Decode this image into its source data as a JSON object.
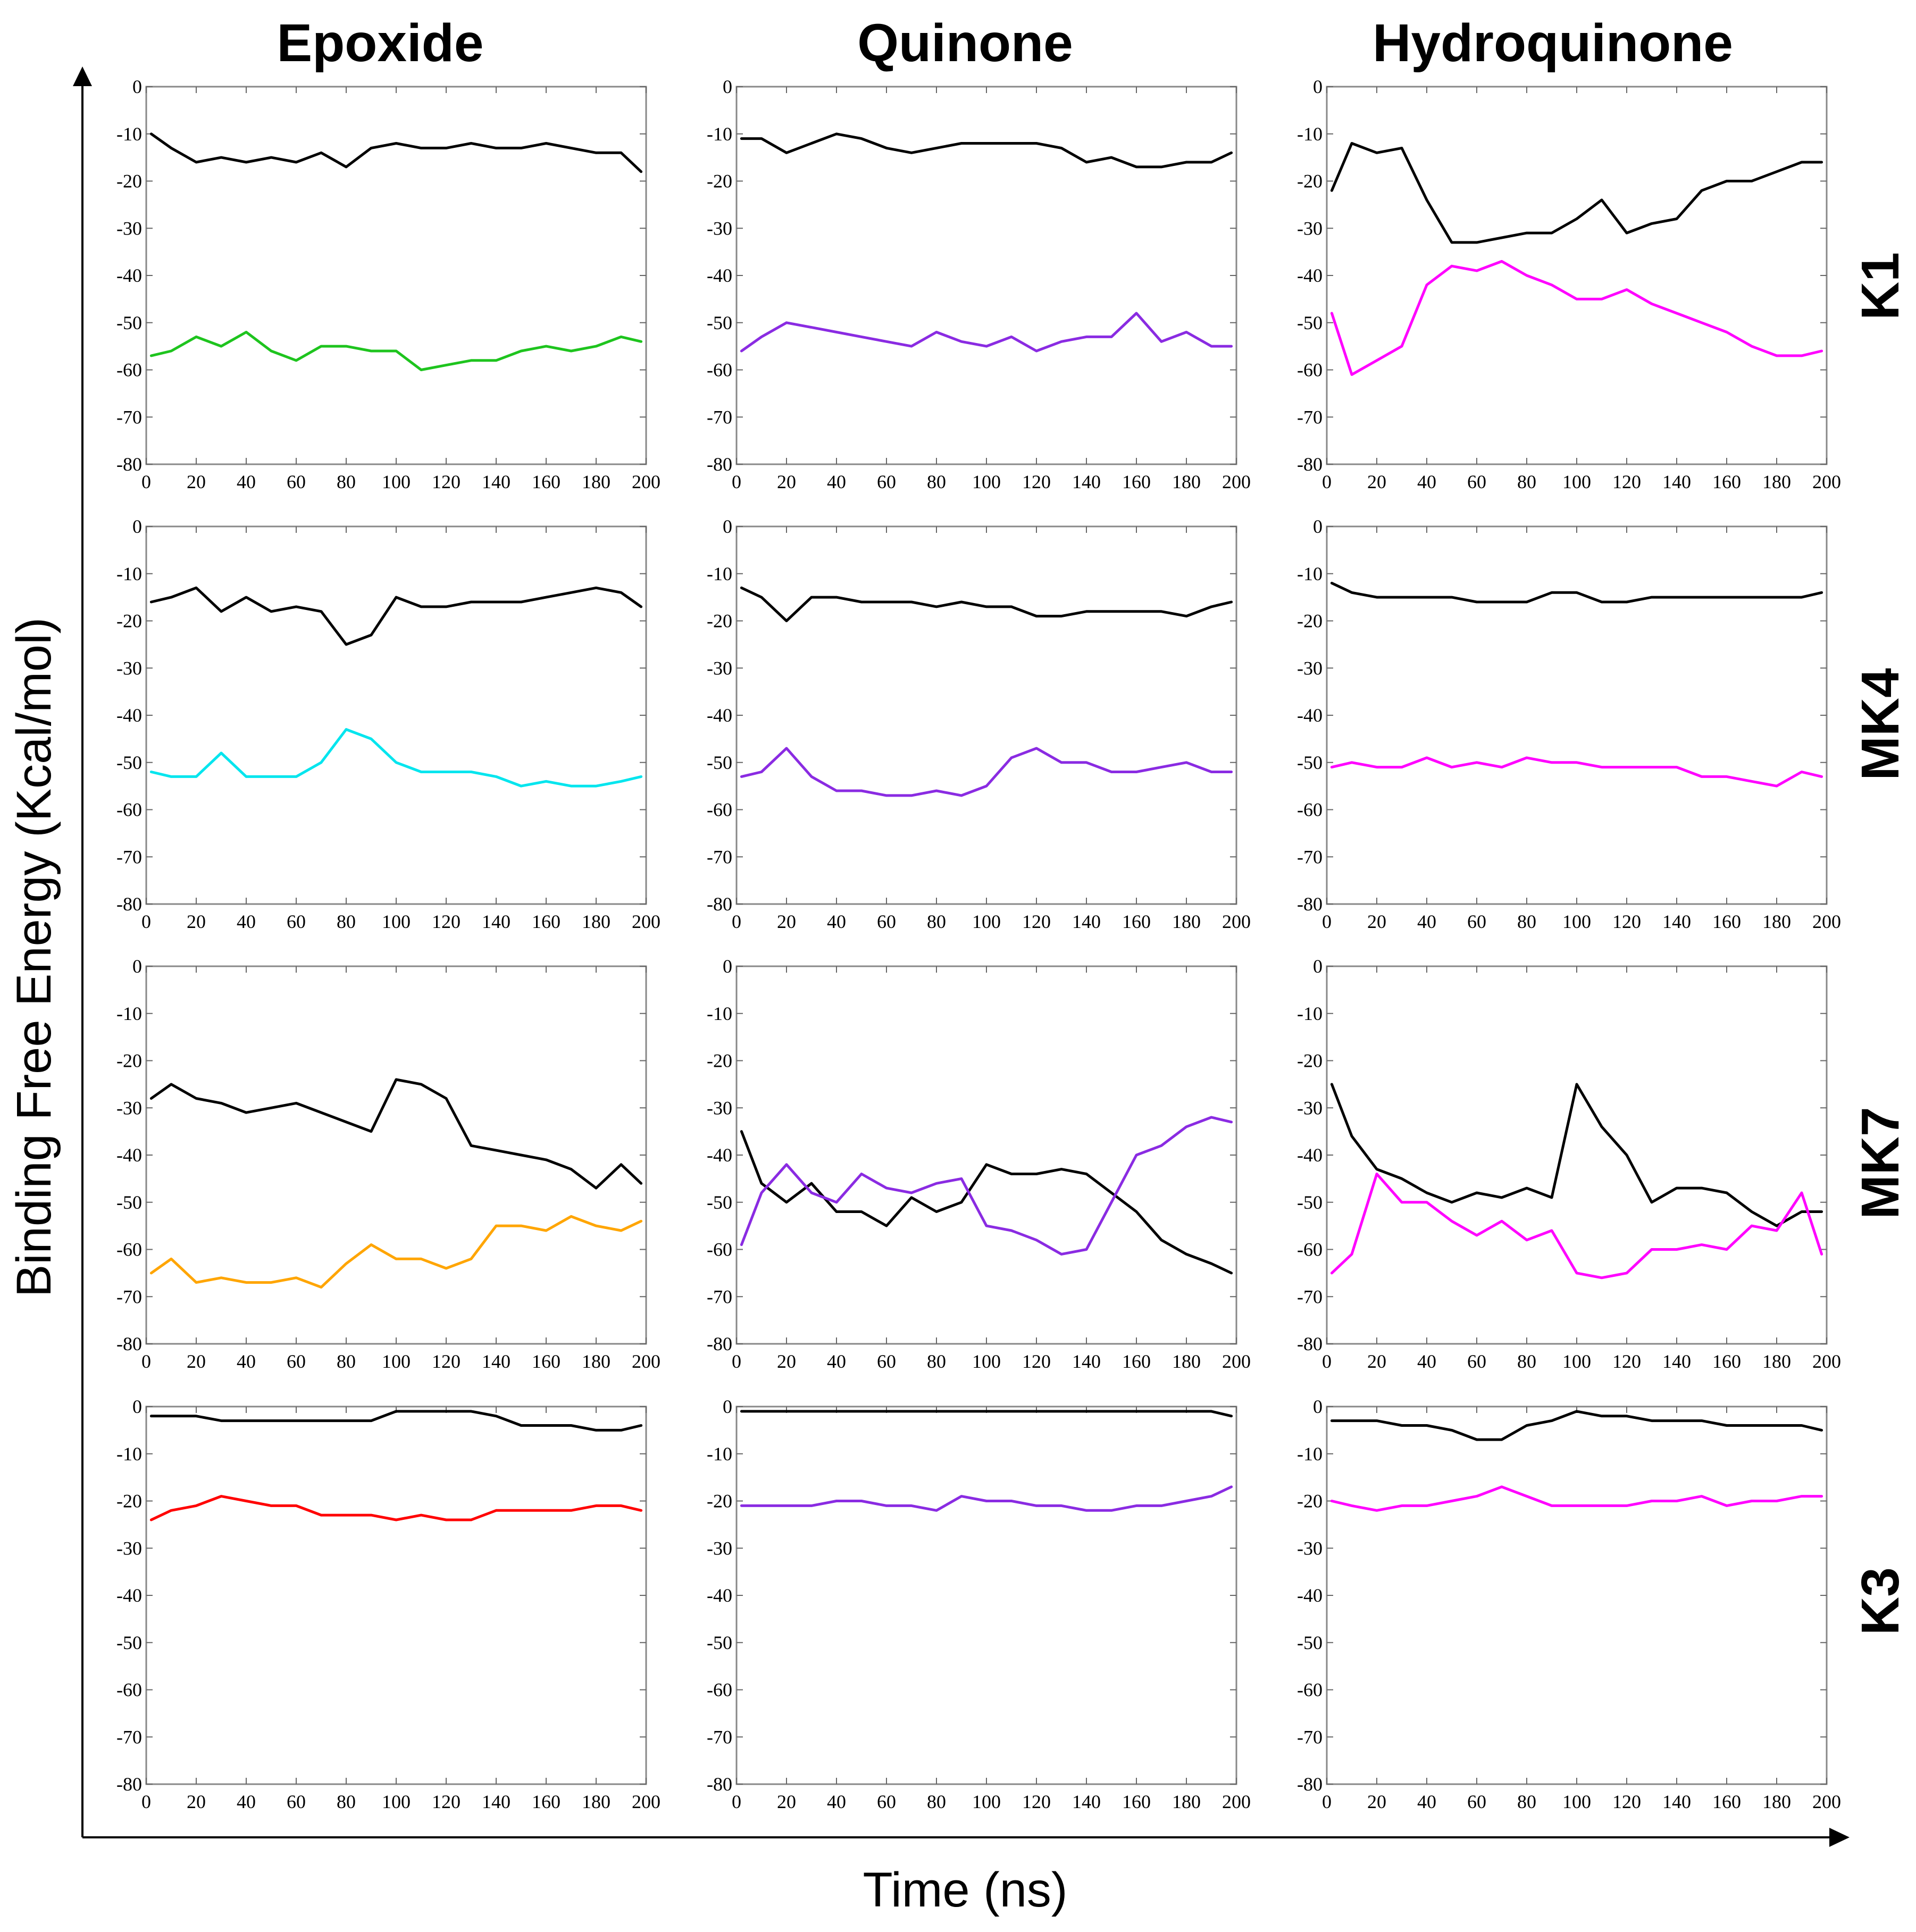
{
  "figure": {
    "column_titles": [
      "Epoxide",
      "Quinone",
      "Hydroquinone"
    ],
    "row_titles": [
      "K1",
      "MK4",
      "MK7",
      "K3"
    ],
    "x_axis_title": "Time (ns)",
    "y_axis_title": "Binding Free Energy (Kcal/mol)"
  },
  "chart_data": {
    "type": "line",
    "layout": "4x3 grid",
    "xlim": [
      0,
      200
    ],
    "ylim": [
      -80,
      0
    ],
    "x_ticks": [
      0,
      20,
      40,
      60,
      80,
      100,
      120,
      140,
      160,
      180,
      200
    ],
    "y_ticks": [
      0,
      -10,
      -20,
      -30,
      -40,
      -50,
      -60,
      -70,
      -80
    ],
    "x_tick_labels": [
      "0",
      "20",
      "40",
      "60",
      "80",
      "100",
      "120",
      "140",
      "160",
      "180",
      "200"
    ],
    "y_tick_labels": [
      "0",
      "-10",
      "-20",
      "-30",
      "-40",
      "-50",
      "-60",
      "-70",
      "-80"
    ],
    "x": [
      2,
      10,
      20,
      30,
      40,
      50,
      60,
      70,
      80,
      90,
      100,
      110,
      120,
      130,
      140,
      150,
      160,
      170,
      180,
      190,
      198
    ],
    "panels": [
      {
        "row": "K1",
        "col": "Epoxide",
        "series": [
          {
            "color": "#000000",
            "values": [
              -10,
              -13,
              -16,
              -15,
              -16,
              -15,
              -16,
              -14,
              -17,
              -13,
              -12,
              -13,
              -13,
              -12,
              -13,
              -13,
              -12,
              -13,
              -14,
              -14,
              -18
            ]
          },
          {
            "color": "#1ec41e",
            "values": [
              -57,
              -56,
              -53,
              -55,
              -52,
              -56,
              -58,
              -55,
              -55,
              -56,
              -56,
              -60,
              -59,
              -58,
              -58,
              -56,
              -55,
              -56,
              -55,
              -53,
              -54
            ]
          }
        ]
      },
      {
        "row": "K1",
        "col": "Quinone",
        "series": [
          {
            "color": "#000000",
            "values": [
              -11,
              -11,
              -14,
              -12,
              -10,
              -11,
              -13,
              -14,
              -13,
              -12,
              -12,
              -12,
              -12,
              -13,
              -16,
              -15,
              -17,
              -17,
              -16,
              -16,
              -14
            ]
          },
          {
            "color": "#8a2be2",
            "values": [
              -56,
              -53,
              -50,
              -51,
              -52,
              -53,
              -54,
              -55,
              -52,
              -54,
              -55,
              -53,
              -56,
              -54,
              -53,
              -53,
              -48,
              -54,
              -52,
              -55,
              -55
            ]
          }
        ]
      },
      {
        "row": "K1",
        "col": "Hydroquinone",
        "series": [
          {
            "color": "#000000",
            "values": [
              -22,
              -12,
              -14,
              -13,
              -24,
              -33,
              -33,
              -32,
              -31,
              -31,
              -28,
              -24,
              -31,
              -29,
              -28,
              -22,
              -20,
              -20,
              -18,
              -16,
              -16
            ]
          },
          {
            "color": "#ff00ff",
            "values": [
              -48,
              -61,
              -58,
              -55,
              -42,
              -38,
              -39,
              -37,
              -40,
              -42,
              -45,
              -45,
              -43,
              -46,
              -48,
              -50,
              -52,
              -55,
              -57,
              -57,
              -56
            ]
          }
        ]
      },
      {
        "row": "MK4",
        "col": "Epoxide",
        "series": [
          {
            "color": "#000000",
            "values": [
              -16,
              -15,
              -13,
              -18,
              -15,
              -18,
              -17,
              -18,
              -25,
              -23,
              -15,
              -17,
              -17,
              -16,
              -16,
              -16,
              -15,
              -14,
              -13,
              -14,
              -17
            ]
          },
          {
            "color": "#00e5ee",
            "values": [
              -52,
              -53,
              -53,
              -48,
              -53,
              -53,
              -53,
              -50,
              -43,
              -45,
              -50,
              -52,
              -52,
              -52,
              -53,
              -55,
              -54,
              -55,
              -55,
              -54,
              -53
            ]
          }
        ]
      },
      {
        "row": "MK4",
        "col": "Quinone",
        "series": [
          {
            "color": "#000000",
            "values": [
              -13,
              -15,
              -20,
              -15,
              -15,
              -16,
              -16,
              -16,
              -17,
              -16,
              -17,
              -17,
              -19,
              -19,
              -18,
              -18,
              -18,
              -18,
              -19,
              -17,
              -16
            ]
          },
          {
            "color": "#8a2be2",
            "values": [
              -53,
              -52,
              -47,
              -53,
              -56,
              -56,
              -57,
              -57,
              -56,
              -57,
              -55,
              -49,
              -47,
              -50,
              -50,
              -52,
              -52,
              -51,
              -50,
              -52,
              -52
            ]
          }
        ]
      },
      {
        "row": "MK4",
        "col": "Hydroquinone",
        "series": [
          {
            "color": "#000000",
            "values": [
              -12,
              -14,
              -15,
              -15,
              -15,
              -15,
              -16,
              -16,
              -16,
              -14,
              -14,
              -16,
              -16,
              -15,
              -15,
              -15,
              -15,
              -15,
              -15,
              -15,
              -14
            ]
          },
          {
            "color": "#ff00ff",
            "values": [
              -51,
              -50,
              -51,
              -51,
              -49,
              -51,
              -50,
              -51,
              -49,
              -50,
              -50,
              -51,
              -51,
              -51,
              -51,
              -53,
              -53,
              -54,
              -55,
              -52,
              -53
            ]
          }
        ]
      },
      {
        "row": "MK7",
        "col": "Epoxide",
        "series": [
          {
            "color": "#000000",
            "values": [
              -28,
              -25,
              -28,
              -29,
              -31,
              -30,
              -29,
              -31,
              -33,
              -35,
              -24,
              -25,
              -28,
              -38,
              -39,
              -40,
              -41,
              -43,
              -47,
              -42,
              -46
            ]
          },
          {
            "color": "#ffa500",
            "values": [
              -65,
              -62,
              -67,
              -66,
              -67,
              -67,
              -66,
              -68,
              -63,
              -59,
              -62,
              -62,
              -64,
              -62,
              -55,
              -55,
              -56,
              -53,
              -55,
              -56,
              -54
            ]
          }
        ]
      },
      {
        "row": "MK7",
        "col": "Quinone",
        "series": [
          {
            "color": "#000000",
            "values": [
              -35,
              -46,
              -50,
              -46,
              -52,
              -52,
              -55,
              -49,
              -52,
              -50,
              -42,
              -44,
              -44,
              -43,
              -44,
              -48,
              -52,
              -58,
              -61,
              -63,
              -65
            ]
          },
          {
            "color": "#8a2be2",
            "values": [
              -59,
              -48,
              -42,
              -48,
              -50,
              -44,
              -47,
              -48,
              -46,
              -45,
              -55,
              -56,
              -58,
              -61,
              -60,
              -50,
              -40,
              -38,
              -34,
              -32,
              -33
            ]
          }
        ]
      },
      {
        "row": "MK7",
        "col": "Hydroquinone",
        "series": [
          {
            "color": "#000000",
            "values": [
              -25,
              -36,
              -43,
              -45,
              -48,
              -50,
              -48,
              -49,
              -47,
              -49,
              -25,
              -34,
              -40,
              -50,
              -47,
              -47,
              -48,
              -52,
              -55,
              -52,
              -52
            ]
          },
          {
            "color": "#ff00ff",
            "values": [
              -65,
              -61,
              -44,
              -50,
              -50,
              -54,
              -57,
              -54,
              -58,
              -56,
              -65,
              -66,
              -65,
              -60,
              -60,
              -59,
              -60,
              -55,
              -56,
              -48,
              -61
            ]
          }
        ]
      },
      {
        "row": "K3",
        "col": "Epoxide",
        "series": [
          {
            "color": "#000000",
            "values": [
              -2,
              -2,
              -2,
              -3,
              -3,
              -3,
              -3,
              -3,
              -3,
              -3,
              -1,
              -1,
              -1,
              -1,
              -2,
              -4,
              -4,
              -4,
              -5,
              -5,
              -4
            ]
          },
          {
            "color": "#ff0000",
            "values": [
              -24,
              -22,
              -21,
              -19,
              -20,
              -21,
              -21,
              -23,
              -23,
              -23,
              -24,
              -23,
              -24,
              -24,
              -22,
              -22,
              -22,
              -22,
              -21,
              -21,
              -22
            ]
          }
        ]
      },
      {
        "row": "K3",
        "col": "Quinone",
        "series": [
          {
            "color": "#000000",
            "values": [
              -1,
              -1,
              -1,
              -1,
              -1,
              -1,
              -1,
              -1,
              -1,
              -1,
              -1,
              -1,
              -1,
              -1,
              -1,
              -1,
              -1,
              -1,
              -1,
              -1,
              -2
            ]
          },
          {
            "color": "#8a2be2",
            "values": [
              -21,
              -21,
              -21,
              -21,
              -20,
              -20,
              -21,
              -21,
              -22,
              -19,
              -20,
              -20,
              -21,
              -21,
              -22,
              -22,
              -21,
              -21,
              -20,
              -19,
              -17
            ]
          }
        ]
      },
      {
        "row": "K3",
        "col": "Hydroquinone",
        "series": [
          {
            "color": "#000000",
            "values": [
              -3,
              -3,
              -3,
              -4,
              -4,
              -5,
              -7,
              -7,
              -4,
              -3,
              -1,
              -2,
              -2,
              -3,
              -3,
              -3,
              -4,
              -4,
              -4,
              -4,
              -5
            ]
          },
          {
            "color": "#ff00ff",
            "values": [
              -20,
              -21,
              -22,
              -21,
              -21,
              -20,
              -19,
              -17,
              -19,
              -21,
              -21,
              -21,
              -21,
              -20,
              -20,
              -19,
              -21,
              -20,
              -20,
              -19,
              -19
            ]
          }
        ]
      }
    ]
  }
}
